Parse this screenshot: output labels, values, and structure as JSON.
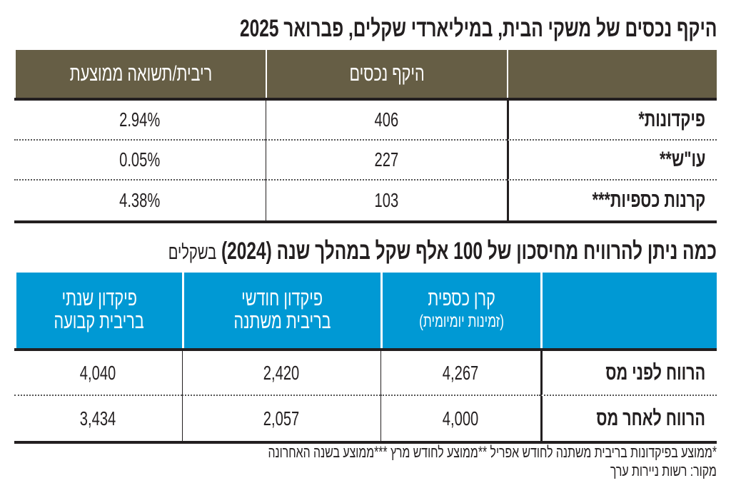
{
  "chart_data": [
    {
      "type": "table",
      "title": "היקף נכסים של משקי הבית, במיליארדי שקלים, פברואר 2025",
      "columns": [
        "",
        "היקף נכסים",
        "ריבית/תשואה ממוצעת"
      ],
      "rows": [
        {
          "label": "פיקדונות*",
          "values": [
            "406",
            "2.94%"
          ]
        },
        {
          "label": "עו\"ש**",
          "values": [
            "227",
            "0.05%"
          ]
        },
        {
          "label": "קרנות כספיות***",
          "values": [
            "103",
            "4.38%"
          ]
        }
      ],
      "header_color": "#665e45"
    },
    {
      "type": "table",
      "title": "כמה ניתן להרוויח מחיסכון של 100 אלף שקל במהלך שנה (2024)",
      "unit": "בשקלים",
      "columns": [
        {
          "line1": "",
          "line2": ""
        },
        {
          "line1": "קרן כספית",
          "line2": "(זמינות יומיומית)"
        },
        {
          "line1": "פיקדון חודשי",
          "line2": "בריבית משתנה"
        },
        {
          "line1": "פיקדון שנתי",
          "line2": "בריבית קבועה"
        }
      ],
      "rows": [
        {
          "label": "הרווח לפני מס",
          "values": [
            "4,267",
            "2,420",
            "4,040"
          ]
        },
        {
          "label": "הרווח לאחר מס",
          "values": [
            "4,000",
            "2,057",
            "3,434"
          ]
        }
      ],
      "header_color": "#0099d4"
    }
  ],
  "footnote": "*ממוצע בפיקדונות בריבית משתנה לחודש אפריל **ממוצע לחודש מרץ ***ממוצע בשנה האחרונה",
  "source": "מקור: רשות ניירות ערך"
}
